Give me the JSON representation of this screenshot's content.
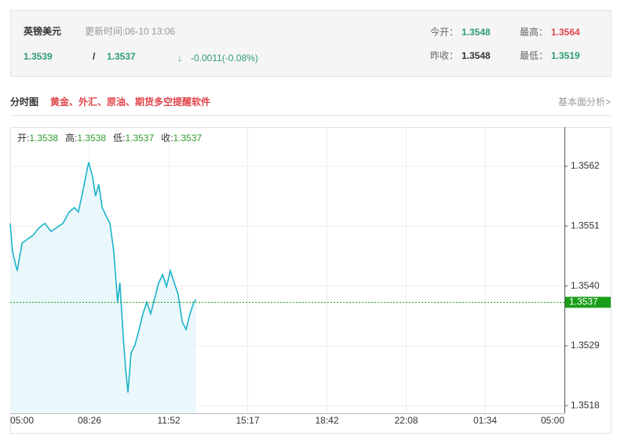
{
  "header": {
    "title": "英镑美元",
    "update_label": "更新时间:",
    "update_time": "06-10 13:06",
    "bid": "1.3539",
    "separator": "/",
    "ask": "1.3537",
    "arrow": "↓",
    "change": "-0.0011(-0.08%)",
    "stats": [
      {
        "label": "今开：",
        "value": "1.3548"
      },
      {
        "label": "最高：",
        "value": "1.3564"
      },
      {
        "label": "昨收：",
        "value": "1.3548"
      },
      {
        "label": "最低：",
        "value": "1.3519"
      }
    ]
  },
  "tabs": {
    "title": "分时图",
    "promo": "黄金、外汇、原油、期货多空提醒软件",
    "link": "基本面分析>"
  },
  "chart_data": {
    "type": "line",
    "ohlc": [
      {
        "label": "开:",
        "value": "1.3538"
      },
      {
        "label": "高:",
        "value": "1.3538"
      },
      {
        "label": "低:",
        "value": "1.3537"
      },
      {
        "label": "收:",
        "value": "1.3537"
      }
    ],
    "series": [
      {
        "color": "#1ab3c8",
        "area_color": "#eaf7fb",
        "x": [
          0,
          6,
          18,
          31,
          45,
          59,
          75,
          90,
          106,
          120,
          137,
          153,
          167,
          177,
          188,
          198,
          204,
          214,
          222,
          230,
          239,
          249,
          259,
          269,
          279,
          285,
          294,
          300,
          306,
          314,
          324,
          335,
          345,
          355,
          365,
          375,
          386,
          396,
          406,
          416,
          426,
          436,
          447,
          457,
          467,
          477,
          483
        ],
        "values": [
          1.35515,
          1.35464,
          1.35428,
          1.35479,
          1.35486,
          1.35493,
          1.35507,
          1.35515,
          1.355,
          1.35507,
          1.35515,
          1.35536,
          1.35544,
          1.35536,
          1.35572,
          1.35608,
          1.35627,
          1.35601,
          1.35565,
          1.35587,
          1.35544,
          1.35529,
          1.35515,
          1.35464,
          1.3537,
          1.35406,
          1.35305,
          1.35247,
          1.35204,
          1.35277,
          1.35291,
          1.3532,
          1.35349,
          1.3537,
          1.35349,
          1.35377,
          1.35406,
          1.35421,
          1.35399,
          1.35428,
          1.35406,
          1.35385,
          1.35334,
          1.3532,
          1.35349,
          1.3537,
          1.35375
        ]
      }
    ],
    "last_price": 1.3537,
    "last_color": "#1a9e1a",
    "xlim": [
      0,
      1440
    ],
    "xticks": [
      {
        "value": 0,
        "label": "05:00"
      },
      {
        "value": 206,
        "label": "08:26"
      },
      {
        "value": 412,
        "label": "11:52"
      },
      {
        "value": 617,
        "label": "15:17"
      },
      {
        "value": 823,
        "label": "18:42"
      },
      {
        "value": 1029,
        "label": "22:08"
      },
      {
        "value": 1234,
        "label": "01:34"
      },
      {
        "value": 1440,
        "label": "05:00"
      }
    ],
    "ylim": [
      1.35166,
      1.35692
    ],
    "yticks": [
      1.3518,
      1.3529,
      {
        "value": 1.354,
        "label": "1.3540"
      },
      1.3551,
      1.3562
    ],
    "grid": true
  }
}
